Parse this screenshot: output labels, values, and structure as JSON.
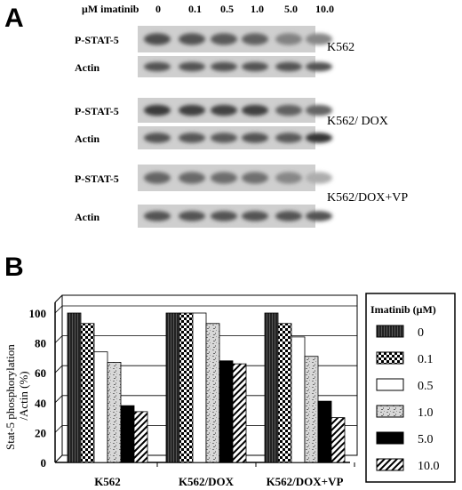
{
  "panels": {
    "a": "A",
    "b": "B"
  },
  "blot": {
    "conc_header": "μM imatinib",
    "concentrations": [
      "0",
      "0.1",
      "0.5",
      "1.0",
      "5.0",
      "10.0"
    ],
    "rows": [
      {
        "label": "P-STAT-5",
        "intensity": [
          0.72,
          0.7,
          0.66,
          0.62,
          0.45,
          0.42
        ]
      },
      {
        "label": "Actin",
        "intensity": [
          0.7,
          0.7,
          0.7,
          0.7,
          0.7,
          0.7
        ]
      },
      {
        "label": "P-STAT-5",
        "intensity": [
          0.82,
          0.8,
          0.78,
          0.8,
          0.62,
          0.6
        ]
      },
      {
        "label": "Actin",
        "intensity": [
          0.7,
          0.68,
          0.66,
          0.7,
          0.66,
          0.85
        ]
      },
      {
        "label": "P-STAT-5",
        "intensity": [
          0.6,
          0.58,
          0.56,
          0.54,
          0.42,
          0.22
        ]
      },
      {
        "label": "Actin",
        "intensity": [
          0.7,
          0.7,
          0.7,
          0.7,
          0.7,
          0.7
        ]
      }
    ],
    "cell_lines": [
      "K562",
      "K562/ DOX",
      "K562/DOX+VP"
    ]
  },
  "chart_data": {
    "type": "bar",
    "ylabel_line1": "Stat-5 phosphorylation",
    "ylabel_line2": "/Actin (%)",
    "ylim": [
      0,
      100
    ],
    "yticks": [
      "0",
      "20",
      "40",
      "60",
      "80",
      "100"
    ],
    "ytick_values": [
      0,
      20,
      40,
      60,
      80,
      100
    ],
    "grid": true,
    "legend_title": "Imatinib (μM)",
    "legend_position": "right",
    "categories": [
      "K562",
      "K562/DOX",
      "K562/DOX+VP"
    ],
    "series": [
      {
        "name": "0",
        "values": [
          100,
          100,
          100
        ]
      },
      {
        "name": "0.1",
        "values": [
          93,
          100,
          93
        ]
      },
      {
        "name": "0.5",
        "values": [
          74,
          100,
          84
        ]
      },
      {
        "name": "1.0",
        "values": [
          67,
          93,
          71
        ]
      },
      {
        "name": "5.0",
        "values": [
          38,
          68,
          41
        ]
      },
      {
        "name": "10.0",
        "values": [
          34,
          66,
          30
        ]
      }
    ]
  }
}
